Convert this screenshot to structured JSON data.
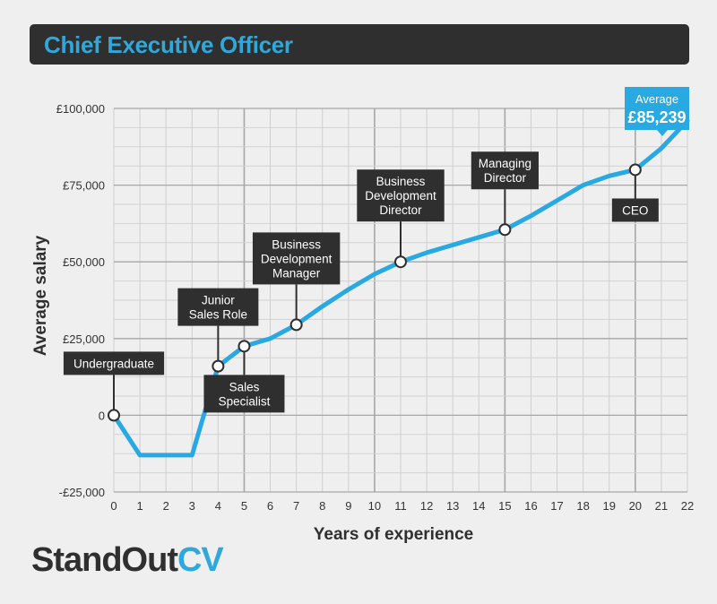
{
  "header": {
    "title": "Chief Executive Officer"
  },
  "brand": {
    "name": "StandOut",
    "suffix": "CV"
  },
  "colors": {
    "line": "#28a9e2",
    "box": "#2f2f2f",
    "grid": "#bfbfbf",
    "background": "#efefef"
  },
  "chart_data": {
    "type": "line",
    "title": "Chief Executive Officer",
    "xlabel": "Years of experience",
    "ylabel": "Average salary",
    "xlim": [
      0,
      22
    ],
    "ylim": [
      -25000,
      100000
    ],
    "xticks": [
      0,
      1,
      2,
      3,
      4,
      5,
      6,
      7,
      8,
      9,
      10,
      11,
      12,
      13,
      14,
      15,
      16,
      17,
      18,
      19,
      20,
      21,
      22
    ],
    "yticks": [
      {
        "value": -25000,
        "label": "-£25,000"
      },
      {
        "value": 0,
        "label": "0"
      },
      {
        "value": 25000,
        "label": "£25,000"
      },
      {
        "value": 50000,
        "label": "£50,000"
      },
      {
        "value": 75000,
        "label": "£75,000"
      },
      {
        "value": 100000,
        "label": "£100,000"
      }
    ],
    "major_x_gridlines": [
      5,
      10,
      15,
      20
    ],
    "grid": true,
    "series": [
      {
        "x": [
          0,
          1,
          2,
          3,
          4,
          5,
          6,
          7,
          8,
          9,
          10,
          11,
          12,
          13,
          14,
          15,
          16,
          17,
          18,
          19,
          20,
          21,
          22
        ],
        "y": [
          0,
          -13000,
          -13000,
          -13000,
          16000,
          22500,
          25000,
          29500,
          35500,
          41000,
          46000,
          50000,
          53000,
          55500,
          58000,
          60500,
          65000,
          70000,
          75000,
          78000,
          80000,
          87000,
          96000
        ]
      }
    ],
    "annotations": [
      {
        "x": 0,
        "y": 0,
        "lines": [
          "Undergraduate"
        ],
        "placement": "above"
      },
      {
        "x": 4,
        "y": 16000,
        "lines": [
          "Junior",
          "Sales Role"
        ],
        "placement": "above"
      },
      {
        "x": 5,
        "y": 22500,
        "lines": [
          "Sales",
          "Specialist"
        ],
        "placement": "below"
      },
      {
        "x": 7,
        "y": 29500,
        "lines": [
          "Business",
          "Development",
          "Manager"
        ],
        "placement": "above"
      },
      {
        "x": 11,
        "y": 50000,
        "lines": [
          "Business",
          "Development",
          "Director"
        ],
        "placement": "above"
      },
      {
        "x": 15,
        "y": 60500,
        "lines": [
          "Managing",
          "Director"
        ],
        "placement": "above"
      },
      {
        "x": 20,
        "y": 80000,
        "lines": [
          "CEO"
        ],
        "placement": "below"
      }
    ],
    "callout": {
      "label": "Average",
      "value": "£85,239"
    }
  }
}
